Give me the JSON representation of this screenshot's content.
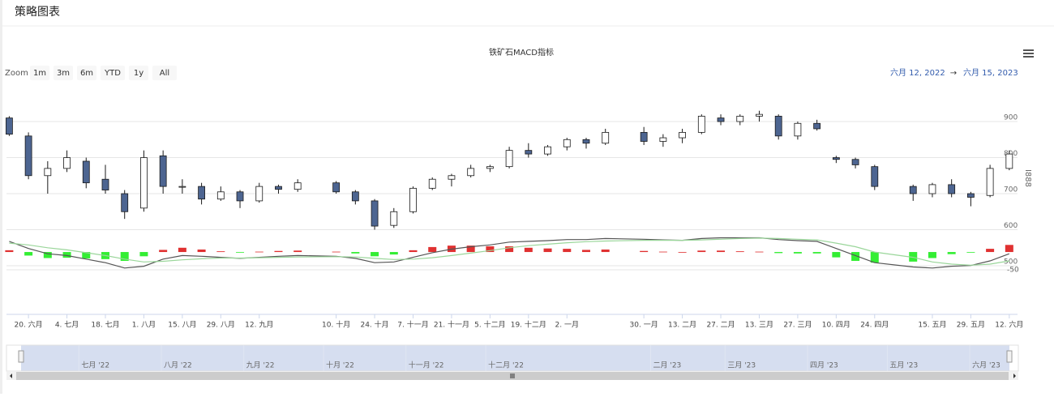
{
  "header": {
    "title": "策略图表"
  },
  "chart_data": {
    "type": "candlestick",
    "title": "铁矿石MACD指标",
    "y_title": "I888",
    "range_selector": {
      "label": "Zoom",
      "buttons": [
        "1m",
        "3m",
        "6m",
        "YTD",
        "1y",
        "All"
      ],
      "from": "六月 12, 2022",
      "arrow": "→",
      "to": "六月 15, 2023"
    },
    "xlim": [
      "2022-06-12",
      "2023-06-15"
    ],
    "x": [
      "2022-06-13",
      "2022-06-20",
      "2022-06-27",
      "2022-07-04",
      "2022-07-11",
      "2022-07-18",
      "2022-07-25",
      "2022-08-01",
      "2022-08-08",
      "2022-08-15",
      "2022-08-22",
      "2022-08-29",
      "2022-09-05",
      "2022-09-12",
      "2022-09-19",
      "2022-09-26",
      "2022-10-10",
      "2022-10-17",
      "2022-10-24",
      "2022-10-31",
      "2022-11-07",
      "2022-11-14",
      "2022-11-21",
      "2022-11-28",
      "2022-12-05",
      "2022-12-12",
      "2022-12-19",
      "2022-12-26",
      "2023-01-02",
      "2023-01-09",
      "2023-01-16",
      "2023-01-30",
      "2023-02-06",
      "2023-02-13",
      "2023-02-20",
      "2023-02-27",
      "2023-03-06",
      "2023-03-13",
      "2023-03-20",
      "2023-03-27",
      "2023-04-03",
      "2023-04-10",
      "2023-04-17",
      "2023-04-24",
      "2023-05-08",
      "2023-05-15",
      "2023-05-22",
      "2023-05-29",
      "2023-06-05",
      "2023-06-12"
    ],
    "open": [
      910,
      860,
      750,
      770,
      790,
      740,
      700,
      660,
      805,
      720,
      720,
      685,
      705,
      680,
      720,
      712,
      730,
      705,
      680,
      612,
      650,
      715,
      740,
      750,
      770,
      775,
      820,
      810,
      830,
      850,
      840,
      870,
      845,
      855,
      870,
      910,
      900,
      915,
      915,
      860,
      895,
      800,
      795,
      775,
      720,
      700,
      725,
      700,
      695,
      770
    ],
    "high": [
      915,
      870,
      790,
      820,
      800,
      780,
      710,
      820,
      820,
      740,
      730,
      720,
      710,
      730,
      725,
      740,
      735,
      710,
      685,
      660,
      720,
      745,
      755,
      780,
      780,
      830,
      840,
      835,
      855,
      855,
      880,
      885,
      865,
      880,
      920,
      920,
      920,
      930,
      920,
      900,
      905,
      805,
      800,
      780,
      725,
      730,
      740,
      705,
      780,
      820
    ],
    "low": [
      860,
      740,
      700,
      760,
      715,
      700,
      630,
      650,
      700,
      700,
      670,
      680,
      660,
      675,
      700,
      705,
      700,
      670,
      600,
      605,
      645,
      710,
      720,
      745,
      760,
      770,
      800,
      805,
      820,
      825,
      835,
      835,
      830,
      840,
      865,
      890,
      890,
      900,
      850,
      850,
      875,
      785,
      770,
      710,
      680,
      690,
      690,
      665,
      690,
      765
    ],
    "close": [
      865,
      750,
      770,
      800,
      730,
      710,
      650,
      800,
      720,
      720,
      685,
      705,
      680,
      720,
      712,
      730,
      705,
      680,
      610,
      650,
      715,
      740,
      750,
      770,
      775,
      820,
      810,
      830,
      850,
      840,
      870,
      845,
      855,
      870,
      915,
      900,
      915,
      920,
      860,
      895,
      880,
      795,
      780,
      720,
      700,
      725,
      700,
      690,
      770,
      810
    ],
    "up_color": "#ffffff",
    "down_color": "#4d6591",
    "line_color": "#1a1a1a",
    "ylim": [
      500,
      990
    ],
    "yticks": [
      500,
      600,
      700,
      800,
      900
    ],
    "grid": true,
    "xticks": [
      {
        "value": "2022-06-20",
        "label": "20. 六月"
      },
      {
        "value": "2022-07-04",
        "label": "4. 七月"
      },
      {
        "value": "2022-07-18",
        "label": "18. 七月"
      },
      {
        "value": "2022-08-01",
        "label": "1. 八月"
      },
      {
        "value": "2022-08-15",
        "label": "15. 八月"
      },
      {
        "value": "2022-08-29",
        "label": "29. 八月"
      },
      {
        "value": "2022-09-12",
        "label": "12. 九月"
      },
      {
        "value": "2022-10-10",
        "label": "10. 十月"
      },
      {
        "value": "2022-10-24",
        "label": "24. 十月"
      },
      {
        "value": "2022-11-07",
        "label": "7. 十一月"
      },
      {
        "value": "2022-11-21",
        "label": "21. 十一月"
      },
      {
        "value": "2022-12-05",
        "label": "5. 十二月"
      },
      {
        "value": "2022-12-19",
        "label": "19. 十二月"
      },
      {
        "value": "2023-01-02",
        "label": "2. 一月"
      },
      {
        "value": "2023-01-30",
        "label": "30. 一月"
      },
      {
        "value": "2023-02-13",
        "label": "13. 二月"
      },
      {
        "value": "2023-02-27",
        "label": "27. 二月"
      },
      {
        "value": "2023-03-13",
        "label": "13. 三月"
      },
      {
        "value": "2023-03-27",
        "label": "27. 三月"
      },
      {
        "value": "2023-04-10",
        "label": "10. 四月"
      },
      {
        "value": "2023-04-24",
        "label": "24. 四月"
      },
      {
        "value": "2023-05-15",
        "label": "15. 五月"
      },
      {
        "value": "2023-05-29",
        "label": "29. 五月"
      },
      {
        "value": "2023-06-12",
        "label": "12. 六月"
      }
    ],
    "navigator_ticks": [
      {
        "value": "2022-07-01",
        "label": "七月 '22"
      },
      {
        "value": "2022-08-01",
        "label": "八月 '22"
      },
      {
        "value": "2022-09-01",
        "label": "九月 '22"
      },
      {
        "value": "2022-10-01",
        "label": "十月 '22"
      },
      {
        "value": "2022-11-01",
        "label": "十一月 '22"
      },
      {
        "value": "2022-12-01",
        "label": "十二月 '22"
      },
      {
        "value": "2023-02-01",
        "label": "二月 '23"
      },
      {
        "value": "2023-03-01",
        "label": "三月 '23"
      },
      {
        "value": "2023-04-01",
        "label": "四月 '23"
      },
      {
        "value": "2023-05-01",
        "label": "五月 '23"
      },
      {
        "value": "2023-06-01",
        "label": "六月 '23"
      }
    ],
    "macd": {
      "ylim": [
        -66,
        48
      ],
      "yticks": [
        -50
      ],
      "series": [
        {
          "color": "#555555",
          "values": [
            30,
            10,
            -5,
            -10,
            -20,
            -30,
            -45,
            -40,
            -20,
            -10,
            -12,
            -15,
            -18,
            -15,
            -12,
            -10,
            -12,
            -18,
            -30,
            -28,
            -15,
            -2,
            8,
            15,
            20,
            28,
            30,
            32,
            35,
            35,
            38,
            36,
            34,
            33,
            38,
            40,
            40,
            40,
            35,
            32,
            30,
            10,
            -10,
            -30,
            -42,
            -45,
            -40,
            -38,
            -25,
            -5
          ]
        },
        {
          "color": "#9ad69a",
          "values": [
            25,
            20,
            12,
            6,
            -2,
            -10,
            -20,
            -28,
            -26,
            -22,
            -19,
            -17,
            -17,
            -16,
            -15,
            -14,
            -13,
            -14,
            -18,
            -21,
            -20,
            -16,
            -10,
            -3,
            4,
            12,
            18,
            22,
            26,
            29,
            31,
            33,
            33,
            33,
            34,
            36,
            38,
            39,
            38,
            36,
            34,
            25,
            15,
            0,
            -15,
            -28,
            -34,
            -37,
            -34,
            -25
          ]
        }
      ],
      "hist": {
        "up_color": "#e03131",
        "down_color": "#33ee33",
        "values": [
          5,
          -10,
          -17,
          -16,
          -18,
          -20,
          -25,
          -12,
          6,
          12,
          7,
          2,
          -1,
          1,
          3,
          4,
          1,
          -4,
          -12,
          -7,
          5,
          14,
          18,
          18,
          16,
          16,
          12,
          10,
          9,
          6,
          7,
          3,
          1,
          0,
          4,
          4,
          2,
          1,
          -3,
          -4,
          -4,
          -15,
          -25,
          -30,
          -27,
          -17,
          -6,
          -1,
          9,
          20
        ]
      }
    }
  }
}
